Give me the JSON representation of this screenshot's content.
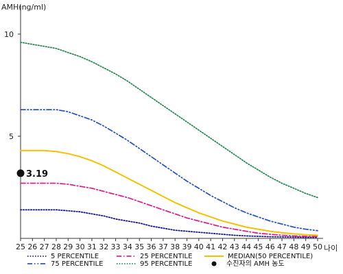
{
  "chart_data": {
    "type": "line",
    "ylabel": "AMH(ng/ml)",
    "xlabel": "나이",
    "x": [
      25,
      26,
      27,
      28,
      29,
      30,
      31,
      32,
      33,
      34,
      35,
      36,
      37,
      38,
      39,
      40,
      41,
      42,
      43,
      44,
      45,
      46,
      47,
      48,
      49,
      50
    ],
    "ylim": [
      0,
      11
    ],
    "xlim": [
      25,
      50
    ],
    "yticks": [
      5,
      10
    ],
    "grid": false,
    "legend_position": "bottom",
    "series": [
      {
        "name": "5 PERCENTILE",
        "color": "#1a1a8c",
        "style": "dotted",
        "values": [
          1.4,
          1.4,
          1.4,
          1.4,
          1.35,
          1.3,
          1.2,
          1.1,
          0.95,
          0.85,
          0.75,
          0.6,
          0.5,
          0.4,
          0.35,
          0.3,
          0.25,
          0.2,
          0.15,
          0.12,
          0.1,
          0.08,
          0.07,
          0.06,
          0.05,
          0.05
        ]
      },
      {
        "name": "25 PERCENTILE",
        "color": "#e0218a",
        "style": "dashdot",
        "values": [
          2.7,
          2.7,
          2.7,
          2.7,
          2.65,
          2.55,
          2.45,
          2.3,
          2.15,
          2.0,
          1.8,
          1.6,
          1.4,
          1.2,
          1.0,
          0.85,
          0.7,
          0.55,
          0.45,
          0.35,
          0.25,
          0.2,
          0.15,
          0.12,
          0.1,
          0.1
        ]
      },
      {
        "name": "MEDIAN(50 PERCENTILE)",
        "color": "#f2c200",
        "style": "solid",
        "values": [
          4.3,
          4.3,
          4.3,
          4.25,
          4.15,
          4.0,
          3.8,
          3.55,
          3.25,
          2.95,
          2.65,
          2.35,
          2.05,
          1.75,
          1.5,
          1.25,
          1.05,
          0.85,
          0.7,
          0.55,
          0.45,
          0.35,
          0.28,
          0.22,
          0.18,
          0.15
        ]
      },
      {
        "name": "75 PERCENTILE",
        "color": "#2a55c8",
        "style": "dashdotdot",
        "values": [
          6.3,
          6.3,
          6.3,
          6.3,
          6.2,
          6.0,
          5.8,
          5.5,
          5.15,
          4.8,
          4.4,
          4.0,
          3.6,
          3.2,
          2.8,
          2.45,
          2.1,
          1.8,
          1.5,
          1.25,
          1.05,
          0.85,
          0.7,
          0.55,
          0.45,
          0.38
        ]
      },
      {
        "name": "95 PERCENTILE",
        "color": "#2e8b57",
        "style": "dotted",
        "values": [
          9.6,
          9.5,
          9.4,
          9.3,
          9.1,
          8.9,
          8.65,
          8.35,
          8.05,
          7.7,
          7.3,
          6.9,
          6.5,
          6.1,
          5.7,
          5.3,
          4.9,
          4.5,
          4.1,
          3.7,
          3.35,
          3.0,
          2.7,
          2.45,
          2.2,
          2.0
        ]
      }
    ],
    "marker": {
      "name": "수진자의 AMH 농도",
      "x": 25,
      "y": 3.19,
      "label": "3.19",
      "color": "#111111"
    }
  }
}
